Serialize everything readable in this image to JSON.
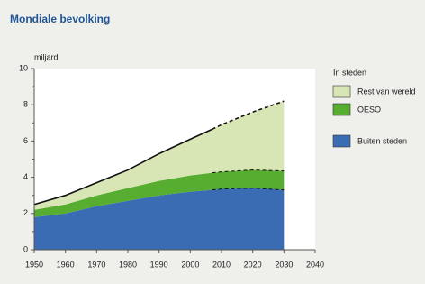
{
  "chart_data": {
    "type": "stacked-area",
    "title": "Mondiale bevolking",
    "y_label": "miljard",
    "x": [
      1950,
      1960,
      1970,
      1980,
      1990,
      2000,
      2007,
      2010,
      2020,
      2030
    ],
    "projection_from": 2007,
    "series": [
      {
        "name": "Buiten steden",
        "color": "#3a6cb4",
        "values": [
          1.8,
          2.0,
          2.4,
          2.7,
          3.0,
          3.2,
          3.3,
          3.35,
          3.4,
          3.3
        ]
      },
      {
        "name": "OESO",
        "color": "#57ad30",
        "values": [
          0.4,
          0.5,
          0.6,
          0.7,
          0.8,
          0.9,
          0.95,
          0.95,
          1.0,
          1.05
        ]
      },
      {
        "name": "Rest van wereld",
        "color": "#d8e5b5",
        "values": [
          0.3,
          0.5,
          0.7,
          1.0,
          1.5,
          2.0,
          2.4,
          2.6,
          3.2,
          3.85
        ]
      }
    ],
    "legend_title": "In steden",
    "xlim": [
      1950,
      2040
    ],
    "xticks": [
      1950,
      1960,
      1970,
      1980,
      1990,
      2000,
      2010,
      2020,
      2030,
      2040
    ],
    "ylim": [
      0,
      10
    ],
    "yticks": [
      0,
      2,
      4,
      6,
      8,
      10
    ],
    "yminorticks": [
      1,
      3,
      5,
      7,
      9
    ]
  }
}
